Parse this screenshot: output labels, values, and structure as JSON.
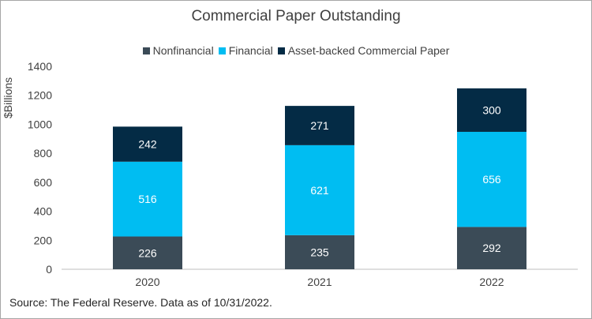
{
  "chart_data": {
    "type": "bar",
    "stacked": true,
    "title": "Commercial Paper Outstanding",
    "xlabel": "",
    "ylabel": "$Billions",
    "ylim": [
      0,
      1400
    ],
    "yticks": [
      0,
      200,
      400,
      600,
      800,
      1000,
      1200,
      1400
    ],
    "categories": [
      "2020",
      "2021",
      "2022"
    ],
    "series": [
      {
        "name": "Nonfinancial",
        "values": [
          226,
          235,
          292
        ],
        "color": "#3b4b57"
      },
      {
        "name": "Financial",
        "values": [
          516,
          621,
          656
        ],
        "color": "#00bdf2"
      },
      {
        "name": "Asset-backed Commercial Paper",
        "values": [
          242,
          271,
          300
        ],
        "color": "#042b45"
      }
    ],
    "legend_position": "top-center",
    "grid": false
  },
  "footer": {
    "source": "Source: The Federal Reserve. Data as of 10/31/2022."
  }
}
